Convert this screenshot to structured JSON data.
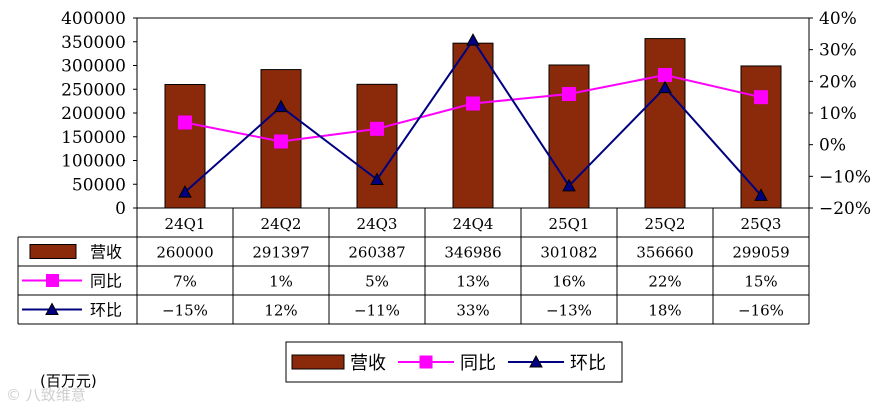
{
  "chart_data": {
    "type": "bar",
    "categories": [
      "24Q1",
      "24Q2",
      "24Q3",
      "24Q4",
      "25Q1",
      "25Q2",
      "25Q3"
    ],
    "series": [
      {
        "name": "营收",
        "kind": "bar",
        "axis": "left",
        "color": "#8B2A0B",
        "values": [
          260000,
          291397,
          260387,
          346986,
          301082,
          356660,
          299059
        ],
        "labels": [
          "260000",
          "291397",
          "260387",
          "346986",
          "301082",
          "356660",
          "299059"
        ]
      },
      {
        "name": "同比",
        "kind": "line",
        "axis": "right",
        "color": "#FF00FF",
        "marker": "square",
        "values": [
          7,
          1,
          5,
          13,
          16,
          22,
          15
        ],
        "labels": [
          "7%",
          "1%",
          "5%",
          "13%",
          "16%",
          "22%",
          "15%"
        ]
      },
      {
        "name": "环比",
        "kind": "line",
        "axis": "right",
        "color": "#000080",
        "marker": "triangle",
        "values": [
          -15,
          12,
          -11,
          33,
          -13,
          18,
          -16
        ],
        "labels": [
          "−15%",
          "12%",
          "−11%",
          "33%",
          "−13%",
          "18%",
          "−16%"
        ]
      }
    ],
    "y_left": {
      "ylim": [
        0,
        400000
      ],
      "ticks": [
        "0",
        "50000",
        "100000",
        "150000",
        "200000",
        "250000",
        "300000",
        "350000",
        "400000"
      ]
    },
    "y_right": {
      "ylim": [
        -20,
        40
      ],
      "ticks": [
        "−20%",
        "−10%",
        "0%",
        "10%",
        "20%",
        "30%",
        "40%"
      ]
    },
    "data_table": true,
    "legend": {
      "position": "bottom-center"
    },
    "unit_label": "(百万元)"
  },
  "watermark": "©  八致维意"
}
